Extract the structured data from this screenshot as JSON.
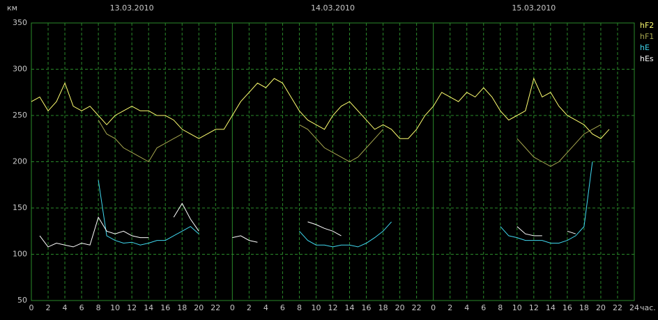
{
  "chart_data": {
    "type": "line",
    "y_label": "км",
    "x_label": "час.",
    "day_labels": [
      "13.03.2010",
      "14.03.2010",
      "15.03.2010"
    ],
    "x": [
      0,
      1,
      2,
      3,
      4,
      5,
      6,
      7,
      8,
      9,
      10,
      11,
      12,
      13,
      14,
      15,
      16,
      17,
      18,
      19,
      20,
      21,
      22,
      23,
      24,
      25,
      26,
      27,
      28,
      29,
      30,
      31,
      32,
      33,
      34,
      35,
      36,
      37,
      38,
      39,
      40,
      41,
      42,
      43,
      44,
      45,
      46,
      47,
      48,
      49,
      50,
      51,
      52,
      53,
      54,
      55,
      56,
      57,
      58,
      59,
      60,
      61,
      62,
      63,
      64,
      65,
      66,
      67,
      68,
      69,
      70,
      71,
      72
    ],
    "xlim": [
      0,
      72
    ],
    "xticks": [
      0,
      2,
      4,
      6,
      8,
      10,
      12,
      14,
      16,
      18,
      20,
      22,
      {
        "value": 24,
        "label": "0"
      },
      {
        "value": 26,
        "label": "2"
      },
      {
        "value": 28,
        "label": "4"
      },
      {
        "value": 30,
        "label": "6"
      },
      {
        "value": 32,
        "label": "8"
      },
      {
        "value": 34,
        "label": "10"
      },
      {
        "value": 36,
        "label": "12"
      },
      {
        "value": 38,
        "label": "14"
      },
      {
        "value": 40,
        "label": "16"
      },
      {
        "value": 42,
        "label": "18"
      },
      {
        "value": 44,
        "label": "20"
      },
      {
        "value": 46,
        "label": "22"
      },
      {
        "value": 48,
        "label": "0"
      },
      {
        "value": 50,
        "label": "2"
      },
      {
        "value": 52,
        "label": "4"
      },
      {
        "value": 54,
        "label": "6"
      },
      {
        "value": 56,
        "label": "8"
      },
      {
        "value": 58,
        "label": "10"
      },
      {
        "value": 60,
        "label": "12"
      },
      {
        "value": 62,
        "label": "14"
      },
      {
        "value": 64,
        "label": "16"
      },
      {
        "value": 66,
        "label": "18"
      },
      {
        "value": 68,
        "label": "20"
      },
      {
        "value": 70,
        "label": "22"
      },
      {
        "value": 72,
        "label": "24"
      }
    ],
    "ylim": [
      50,
      350
    ],
    "yticks": [
      50,
      100,
      150,
      200,
      250,
      300,
      350
    ],
    "grid": true,
    "legend": "top-right",
    "series": [
      {
        "name": "hF2",
        "color": "#ffff70",
        "values": [
          265,
          270,
          255,
          265,
          285,
          260,
          255,
          260,
          250,
          240,
          250,
          255,
          260,
          255,
          255,
          250,
          250,
          245,
          235,
          230,
          225,
          230,
          235,
          235,
          250,
          265,
          275,
          285,
          280,
          290,
          285,
          270,
          255,
          245,
          240,
          235,
          250,
          260,
          265,
          255,
          245,
          235,
          240,
          235,
          225,
          225,
          235,
          250,
          260,
          275,
          270,
          265,
          275,
          270,
          280,
          270,
          255,
          245,
          250,
          255,
          290,
          270,
          275,
          260,
          250,
          245,
          240,
          230,
          225,
          235,
          null,
          null,
          null
        ]
      },
      {
        "name": "hF1",
        "color": "#a8a850",
        "values": [
          null,
          null,
          null,
          null,
          null,
          null,
          null,
          null,
          245,
          230,
          225,
          215,
          210,
          205,
          200,
          215,
          220,
          225,
          230,
          null,
          null,
          null,
          null,
          null,
          null,
          null,
          null,
          null,
          null,
          null,
          null,
          null,
          240,
          235,
          225,
          215,
          210,
          205,
          200,
          205,
          215,
          225,
          235,
          null,
          null,
          null,
          null,
          null,
          null,
          null,
          null,
          null,
          null,
          null,
          null,
          null,
          null,
          null,
          225,
          215,
          205,
          200,
          195,
          200,
          210,
          220,
          230,
          235,
          240,
          null,
          null,
          null,
          null
        ]
      },
      {
        "name": "hE",
        "color": "#40d8f0",
        "values": [
          null,
          null,
          null,
          null,
          null,
          null,
          null,
          null,
          180,
          120,
          115,
          112,
          113,
          110,
          112,
          115,
          115,
          120,
          125,
          130,
          122,
          null,
          null,
          null,
          null,
          null,
          null,
          null,
          null,
          null,
          null,
          null,
          125,
          115,
          110,
          110,
          108,
          110,
          110,
          108,
          112,
          118,
          125,
          135,
          null,
          null,
          null,
          null,
          null,
          null,
          null,
          null,
          null,
          null,
          null,
          null,
          130,
          120,
          118,
          115,
          115,
          115,
          112,
          112,
          115,
          120,
          130,
          200,
          null,
          null,
          null,
          null,
          null
        ]
      },
      {
        "name": "hEs",
        "color": "#ffffff",
        "values": [
          null,
          120,
          108,
          112,
          110,
          108,
          112,
          110,
          140,
          125,
          122,
          125,
          120,
          118,
          118,
          null,
          null,
          140,
          155,
          138,
          125,
          null,
          null,
          null,
          118,
          120,
          115,
          113,
          null,
          null,
          null,
          null,
          null,
          135,
          132,
          128,
          125,
          120,
          null,
          null,
          null,
          null,
          null,
          null,
          null,
          null,
          null,
          null,
          null,
          null,
          null,
          null,
          null,
          null,
          null,
          null,
          null,
          null,
          130,
          122,
          120,
          120,
          null,
          null,
          125,
          122,
          null,
          null,
          null,
          null,
          null,
          null,
          null
        ]
      }
    ]
  }
}
